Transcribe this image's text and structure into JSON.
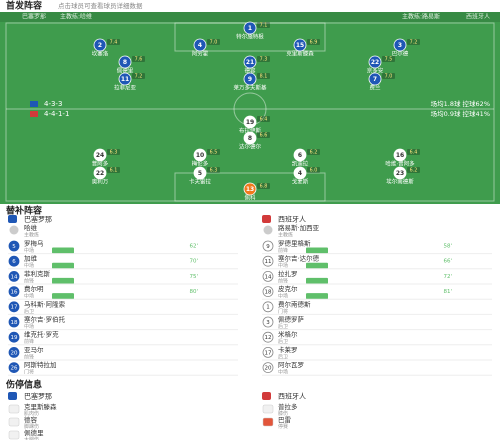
{
  "header": {
    "title": "首发阵容",
    "subtitle": "点击球员可查看球员详细数据"
  },
  "pitch": {
    "home": {
      "name": "巴塞罗那",
      "coach": "主教练:哈维",
      "formation": "4-3-3",
      "stats": "场均1.8球  控球62%",
      "color": "#1f57b5",
      "rows": [
        [
          {
            "number": "1",
            "name": "特尔施特根",
            "rating": "7.1"
          }
        ],
        [
          {
            "number": "2",
            "name": "坎塞洛",
            "rating": "7.4"
          },
          {
            "number": "4",
            "name": "阿劳霍",
            "rating": "7.0"
          },
          {
            "number": "15",
            "name": "克里斯滕森",
            "rating": "6.9"
          },
          {
            "number": "3",
            "name": "巴尔德",
            "rating": "7.2"
          }
        ],
        [
          {
            "number": "8",
            "name": "佩德里",
            "rating": "7.6"
          },
          {
            "number": "21",
            "name": "德容",
            "rating": "7.3"
          },
          {
            "number": "22",
            "name": "京多安",
            "rating": "7.5"
          }
        ],
        [
          {
            "number": "11",
            "name": "拉菲尼亚",
            "rating": "7.2"
          },
          {
            "number": "9",
            "name": "莱万多夫斯基",
            "rating": "8.1"
          },
          {
            "number": "7",
            "name": "费兰",
            "rating": "7.0"
          }
        ]
      ]
    },
    "away": {
      "name": "西班牙人",
      "coach": "主教练:路易斯",
      "formation": "4-4-1-1",
      "stats": "场均0.9球  控球41%",
      "color": "#ffffff",
      "keeper_color": "#f07a1d",
      "rows": [
        [
          {
            "number": "19",
            "name": "布拉伊斯",
            "rating": "6.4"
          }
        ],
        [
          {
            "number": "8",
            "name": "达尔德尔",
            "rating": "6.6"
          }
        ],
        [
          {
            "number": "24",
            "name": "普阿多",
            "rating": "6.3"
          },
          {
            "number": "10",
            "name": "梅伦多",
            "rating": "6.5"
          },
          {
            "number": "6",
            "name": "凯迪拉",
            "rating": "6.2"
          },
          {
            "number": "16",
            "name": "哈维·普阿多",
            "rating": "6.4"
          }
        ],
        [
          {
            "number": "22",
            "name": "奥利万",
            "rating": "6.1"
          },
          {
            "number": "5",
            "name": "卡夫雷拉",
            "rating": "6.3"
          },
          {
            "number": "4",
            "name": "戈麦斯",
            "rating": "6.0"
          },
          {
            "number": "23",
            "name": "埃尔南德斯",
            "rating": "6.2"
          }
        ],
        [
          {
            "number": "13",
            "name": "佩科",
            "rating": "6.8"
          }
        ]
      ]
    }
  },
  "subs": {
    "title": "替补阵容",
    "home": {
      "name": "巴塞罗那",
      "coach": "哈维",
      "coach_role": "主教练",
      "players": [
        {
          "number": "5",
          "name": "罗梅乌",
          "position": "中场",
          "minute": "62'"
        },
        {
          "number": "6",
          "name": "加维",
          "position": "中场",
          "minute": "70'"
        },
        {
          "number": "14",
          "name": "菲利克斯",
          "position": "前锋",
          "minute": "75'"
        },
        {
          "number": "16",
          "name": "费尔明",
          "position": "中场",
          "minute": "80'"
        },
        {
          "number": "17",
          "name": "马科斯·阿隆索",
          "position": "后卫"
        },
        {
          "number": "18",
          "name": "塞尔吉·罗伯托",
          "position": "中场"
        },
        {
          "number": "19",
          "name": "维克托·罗克",
          "position": "前锋"
        },
        {
          "number": "20",
          "name": "亚马尔",
          "position": "前锋"
        },
        {
          "number": "26",
          "name": "阿斯特拉加",
          "position": "门将"
        }
      ]
    },
    "away": {
      "name": "西班牙人",
      "coach": "路易斯·加西亚",
      "coach_role": "主教练",
      "players": [
        {
          "number": "9",
          "name": "罗德里格斯",
          "position": "前锋",
          "minute": "58'"
        },
        {
          "number": "11",
          "name": "塞尔吉·达尔德",
          "position": "中场",
          "minute": "66'"
        },
        {
          "number": "14",
          "name": "拉扎罗",
          "position": "前锋",
          "minute": "72'"
        },
        {
          "number": "18",
          "name": "皮克尔",
          "position": "中场",
          "minute": "81'"
        },
        {
          "number": "1",
          "name": "费尔南德斯",
          "position": "门将"
        },
        {
          "number": "3",
          "name": "佩德罗萨",
          "position": "后卫"
        },
        {
          "number": "12",
          "name": "米格尔",
          "position": "后卫"
        },
        {
          "number": "17",
          "name": "卡莱罗",
          "position": "后卫"
        },
        {
          "number": "20",
          "name": "阿尔瓦罗",
          "position": "中场"
        }
      ]
    }
  },
  "injuries": {
    "title": "伤停信息",
    "home": {
      "name": "巴塞罗那",
      "players": [
        {
          "name": "克里斯滕森",
          "reason": "肌肉伤"
        },
        {
          "name": "德容",
          "reason": "脚踝伤"
        },
        {
          "name": "佩德里",
          "reason": "大腿伤"
        }
      ]
    },
    "away": {
      "name": "西班牙人",
      "players": [
        {
          "name": "普拉多",
          "reason": "膝伤"
        },
        {
          "name": "巴雷",
          "reason": "停赛"
        }
      ]
    }
  }
}
